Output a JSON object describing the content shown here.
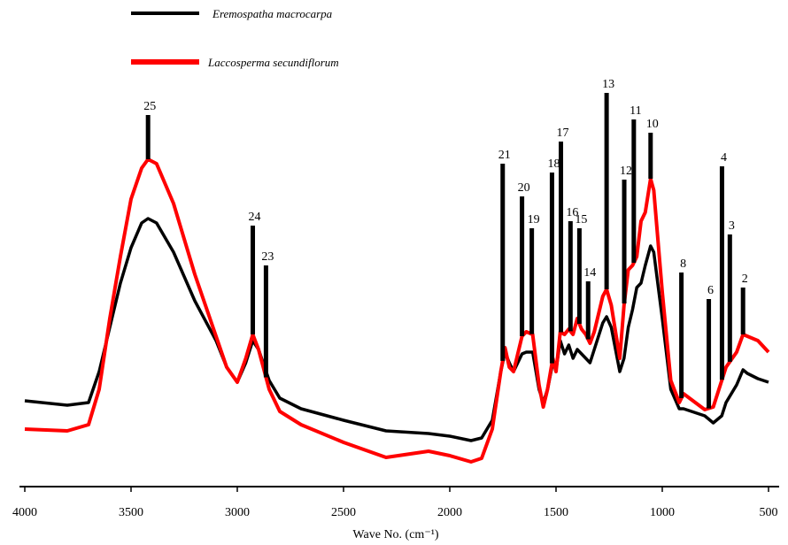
{
  "chart_data": {
    "type": "line",
    "xlabel": "Wave No. (cm⁻¹)",
    "xlim": [
      4025,
      450
    ],
    "ylim": [
      0,
      110
    ],
    "xticks": [
      4000,
      3500,
      3000,
      2500,
      2000,
      1500,
      1000,
      500
    ],
    "legend": "top-left",
    "x": [
      4000,
      3800,
      3700,
      3650,
      3600,
      3550,
      3500,
      3450,
      3420,
      3380,
      3300,
      3200,
      3100,
      3050,
      3000,
      2960,
      2927,
      2900,
      2850,
      2800,
      2700,
      2500,
      2300,
      2100,
      2000,
      1900,
      1850,
      1800,
      1760,
      1740,
      1720,
      1700,
      1660,
      1640,
      1610,
      1580,
      1560,
      1540,
      1515,
      1500,
      1480,
      1460,
      1440,
      1420,
      1400,
      1380,
      1360,
      1340,
      1320,
      1280,
      1262,
      1240,
      1200,
      1180,
      1160,
      1140,
      1120,
      1100,
      1080,
      1055,
      1040,
      1000,
      960,
      920,
      900,
      800,
      760,
      720,
      700,
      650,
      620,
      600,
      550,
      500
    ],
    "series": [
      {
        "name": "Eremospatha macrocarpa",
        "color": "#000000",
        "values": [
          19.4,
          18.4,
          19,
          26,
          36,
          46,
          54,
          59.6,
          60.6,
          59.6,
          53,
          42,
          33,
          27,
          23.6,
          28,
          33,
          31,
          24,
          20,
          17.6,
          15,
          12.6,
          12,
          11.4,
          10.4,
          11,
          15,
          26,
          30.4,
          28,
          26,
          30,
          30.4,
          30.4,
          22,
          19,
          22,
          28,
          26.4,
          33,
          30,
          32,
          29,
          31,
          30,
          29,
          28,
          31,
          37,
          38.4,
          36,
          26,
          29,
          36,
          40,
          45,
          46,
          50,
          54.4,
          53,
          38,
          22,
          17.6,
          17.6,
          16,
          14.4,
          16,
          19,
          23,
          26.4,
          25.6,
          24.4,
          23.6
        ]
      },
      {
        "name": "Laccosperma secundiflorum",
        "color": "#ff0000",
        "values": [
          13,
          12.6,
          14,
          22,
          38,
          52,
          65,
          72,
          74,
          73,
          64,
          48,
          34,
          27,
          23.6,
          29,
          34.4,
          31,
          22,
          17,
          14,
          10,
          6.6,
          8,
          7,
          5.6,
          6.4,
          13,
          26,
          31.4,
          27,
          26,
          34,
          35,
          34.4,
          23,
          18,
          22,
          29,
          26,
          35,
          34.4,
          35.6,
          34.4,
          38,
          35.6,
          34.4,
          32.4,
          35,
          43,
          44.6,
          41,
          29,
          41,
          49,
          50,
          52,
          60,
          62,
          69.6,
          67,
          44,
          24,
          19,
          21,
          17.4,
          18,
          24,
          27,
          30.4,
          34.4,
          34,
          33,
          30.4
        ]
      }
    ],
    "peaks": [
      {
        "label": "25",
        "x": 3420,
        "y": 84
      },
      {
        "label": "24",
        "x": 2927,
        "y": 59
      },
      {
        "label": "23",
        "x": 2865,
        "y": 50
      },
      {
        "label": "21",
        "x": 1751,
        "y": 73
      },
      {
        "label": "20",
        "x": 1660,
        "y": 65.6
      },
      {
        "label": "19",
        "x": 1614,
        "y": 58.4
      },
      {
        "label": "18",
        "x": 1519,
        "y": 71
      },
      {
        "label": "17",
        "x": 1477,
        "y": 78
      },
      {
        "label": "16",
        "x": 1432,
        "y": 60
      },
      {
        "label": "15",
        "x": 1390,
        "y": 58.4
      },
      {
        "label": "14",
        "x": 1349,
        "y": 46.4
      },
      {
        "label": "13",
        "x": 1262,
        "y": 89
      },
      {
        "label": "12",
        "x": 1179,
        "y": 69.4
      },
      {
        "label": "11",
        "x": 1134,
        "y": 83
      },
      {
        "label": "10",
        "x": 1055,
        "y": 80
      },
      {
        "label": "8",
        "x": 910,
        "y": 48.4
      },
      {
        "label": "6",
        "x": 781,
        "y": 42.4
      },
      {
        "label": "4",
        "x": 719,
        "y": 72.4
      },
      {
        "label": "3",
        "x": 682,
        "y": 57
      },
      {
        "label": "2",
        "x": 620,
        "y": 45
      }
    ]
  }
}
